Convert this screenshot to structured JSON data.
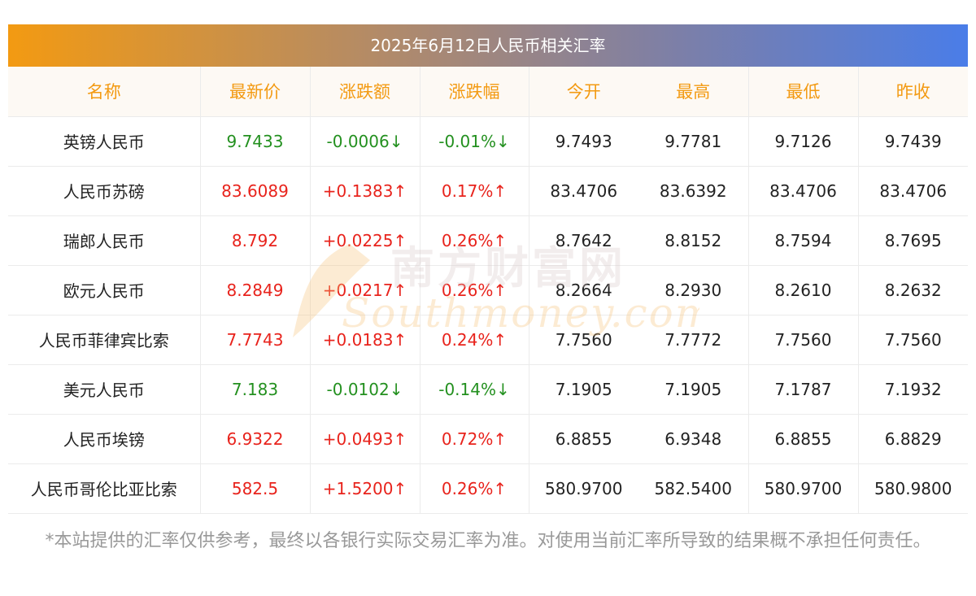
{
  "title": "2025年6月12日人民币相关汇率",
  "columns": [
    "名称",
    "最新价",
    "涨跌额",
    "涨跌幅",
    "今开",
    "最高",
    "最低",
    "昨收"
  ],
  "rows": [
    {
      "name": "英镑人民币",
      "last": "9.7433",
      "change": "-0.0006↓",
      "pct": "-0.01%↓",
      "open": "9.7493",
      "high": "9.7781",
      "low": "9.7126",
      "prev": "9.7439",
      "dir": "down"
    },
    {
      "name": "人民币苏磅",
      "last": "83.6089",
      "change": "+0.1383↑",
      "pct": "0.17%↑",
      "open": "83.4706",
      "high": "83.6392",
      "low": "83.4706",
      "prev": "83.4706",
      "dir": "up"
    },
    {
      "name": "瑞郎人民币",
      "last": "8.792",
      "change": "+0.0225↑",
      "pct": "0.26%↑",
      "open": "8.7642",
      "high": "8.8152",
      "low": "8.7594",
      "prev": "8.7695",
      "dir": "up"
    },
    {
      "name": "欧元人民币",
      "last": "8.2849",
      "change": "+0.0217↑",
      "pct": "0.26%↑",
      "open": "8.2664",
      "high": "8.2930",
      "low": "8.2610",
      "prev": "8.2632",
      "dir": "up"
    },
    {
      "name": "人民币菲律宾比索",
      "last": "7.7743",
      "change": "+0.0183↑",
      "pct": "0.24%↑",
      "open": "7.7560",
      "high": "7.7772",
      "low": "7.7560",
      "prev": "7.7560",
      "dir": "up"
    },
    {
      "name": "美元人民币",
      "last": "7.183",
      "change": "-0.0102↓",
      "pct": "-0.14%↓",
      "open": "7.1905",
      "high": "7.1905",
      "low": "7.1787",
      "prev": "7.1932",
      "dir": "down"
    },
    {
      "name": "人民币埃镑",
      "last": "6.9322",
      "change": "+0.0493↑",
      "pct": "0.72%↑",
      "open": "6.8855",
      "high": "6.9348",
      "low": "6.8855",
      "prev": "6.8829",
      "dir": "up"
    },
    {
      "name": "人民币哥伦比亚比索",
      "last": "582.5",
      "change": "+1.5200↑",
      "pct": "0.26%↑",
      "open": "580.9700",
      "high": "582.5400",
      "low": "580.9700",
      "prev": "580.9800",
      "dir": "up"
    }
  ],
  "watermark": {
    "cn": "南方财富网",
    "en": "Southmoney.com"
  },
  "footnote": "*本站提供的汇率仅供参考，最终以各银行实际交易汇率为准。对使用当前汇率所导致的结果概不承担任何责任。",
  "colors": {
    "up": "#e8231c",
    "down": "#23901f",
    "header_text": "#f39a12"
  }
}
